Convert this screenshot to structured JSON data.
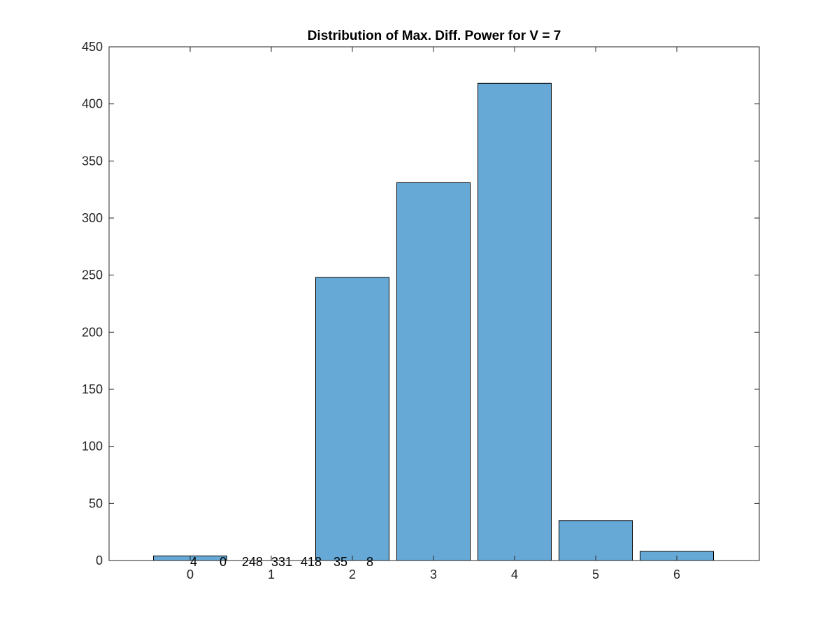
{
  "chart_data": {
    "type": "bar",
    "title": "Distribution of Max. Diff. Power for V = 7",
    "xlabel": "",
    "ylabel": "",
    "categories": [
      "0",
      "1",
      "2",
      "3",
      "4",
      "5",
      "6"
    ],
    "values": [
      4,
      0,
      248,
      331,
      418,
      35,
      8
    ],
    "data_labels": [
      "4",
      "0",
      "248",
      "331",
      "418",
      "35",
      "8"
    ],
    "ylim": [
      0,
      450
    ],
    "yticks": [
      "0",
      "50",
      "100",
      "150",
      "200",
      "250",
      "300",
      "350",
      "400",
      "450"
    ],
    "grid": false,
    "bar_color": "#66a9d6",
    "edge_color": "#000000"
  }
}
